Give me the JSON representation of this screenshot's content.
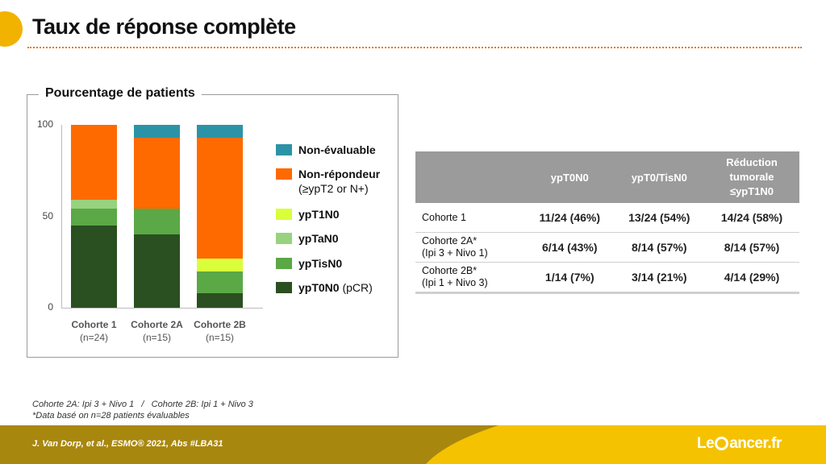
{
  "title": "Taux de réponse complète",
  "colors": {
    "non_evaluable": "#2c93a6",
    "non_repondeur": "#ff6a00",
    "ypT1N0": "#d9ff3a",
    "ypTaN0": "#98d27f",
    "ypTisN0": "#5aa846",
    "ypT0N0": "#2a4f20",
    "table_header": "#9b9b9b",
    "accent": "#f2b200"
  },
  "chart_data": {
    "type": "bar",
    "stacked": true,
    "title": "Pourcentage de patients",
    "ylim": [
      0,
      100
    ],
    "yticks": [
      "0",
      "50",
      "100"
    ],
    "categories": [
      {
        "label": "Cohorte 1",
        "sub": "(n=24)"
      },
      {
        "label": "Cohorte 2A",
        "sub": "(n=15)"
      },
      {
        "label": "Cohorte 2B",
        "sub": "(n=15)"
      }
    ],
    "series": [
      {
        "key": "ypT0N0",
        "name": "ypT0N0",
        "suffix": " (pCR)",
        "values": [
          45,
          40,
          8
        ]
      },
      {
        "key": "ypTisN0",
        "name": "ypTisN0",
        "values": [
          9,
          14,
          12
        ]
      },
      {
        "key": "ypTaN0",
        "name": "ypTaN0",
        "values": [
          5,
          0,
          0
        ]
      },
      {
        "key": "ypT1N0",
        "name": "ypT1N0",
        "values": [
          0,
          0,
          7
        ]
      },
      {
        "key": "non_repondeur",
        "name": "Non-répondeur",
        "sub": "(≥ypT2 or N+)",
        "values": [
          41,
          39,
          66
        ]
      },
      {
        "key": "non_evaluable",
        "name": "Non-évaluable",
        "values": [
          0,
          7,
          7
        ]
      }
    ],
    "legend_order": [
      "non_evaluable",
      "non_repondeur",
      "ypT1N0",
      "ypTaN0",
      "ypTisN0",
      "ypT0N0"
    ]
  },
  "table": {
    "headers": [
      "",
      "ypT0N0",
      "ypT0/TisN0",
      "Réduction tumorale ≤ypT1N0"
    ],
    "rows": [
      {
        "name": [
          "Cohorte 1"
        ],
        "cells": [
          "11/24 (46%)",
          "13/24 (54%)",
          "14/24 (58%)"
        ]
      },
      {
        "name": [
          "Cohorte 2A*",
          "(Ipi 3 + Nivo 1)"
        ],
        "cells": [
          "6/14 (43%)",
          "8/14 (57%)",
          "8/14 (57%)"
        ]
      },
      {
        "name": [
          "Cohorte 2B*",
          "(Ipi 1 + Nivo 3)"
        ],
        "cells": [
          "1/14 (7%)",
          "3/14 (21%)",
          "4/14 (29%)"
        ]
      }
    ]
  },
  "footnotes": [
    "Cohorte 2A: Ipi 3 + Nivo 1   /   Cohorte 2B: Ipi 1 + Nivo 3",
    "*Data basé on n=28 patients évaluables"
  ],
  "footer": {
    "citation": "J. Van Dorp, et al.,  ESMO® 2021, Abs #LBA31",
    "logo_left": "Le",
    "logo_right": "ancer.fr"
  }
}
